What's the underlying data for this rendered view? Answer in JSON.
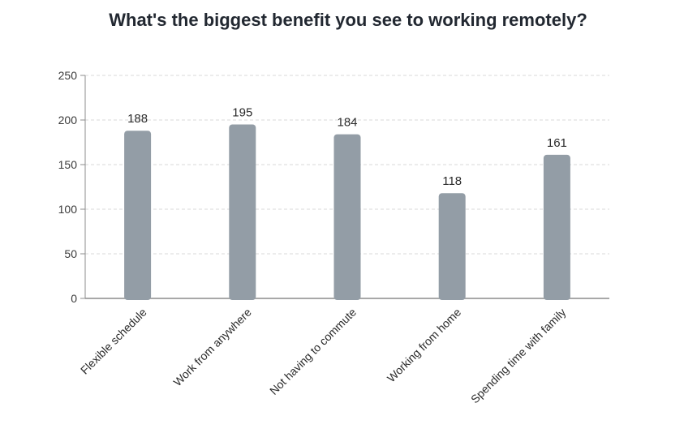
{
  "chart_data": {
    "type": "bar",
    "title": "What's the biggest benefit you see to working remotely?",
    "categories": [
      "Flexible schedule",
      "Work from anywhere",
      "Not having to commute",
      "Working from home",
      "Spending time with family"
    ],
    "values": [
      188,
      195,
      184,
      118,
      161
    ],
    "ylim": [
      0,
      250
    ],
    "yticks": [
      0,
      50,
      100,
      150,
      200,
      250
    ],
    "xlabel": "",
    "ylabel": "",
    "grid": "horizontal dashed",
    "legend": "none",
    "bar_color": "#939da6",
    "grid_color": "#d9d9d9",
    "axis_color": "#8c8c8c"
  }
}
